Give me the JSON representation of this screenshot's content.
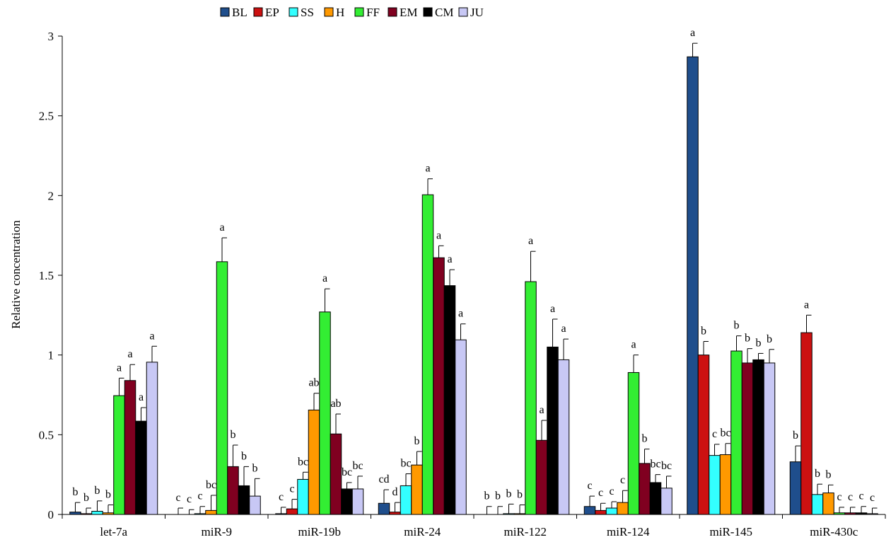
{
  "chart_data": {
    "type": "bar",
    "title": "",
    "xlabel": "",
    "ylabel": "Relative concentration",
    "ylim": [
      0,
      3
    ],
    "yticks": [
      "0",
      "0.5",
      "1",
      "1.5",
      "2",
      "2.5",
      "3"
    ],
    "grid": false,
    "legend_position": "top",
    "categories": [
      "let-7a",
      "miR-9",
      "miR-19b",
      "miR-24",
      "miR-122",
      "miR-124",
      "miR-145",
      "miR-430c"
    ],
    "series": [
      {
        "name": "BL",
        "color": "#1f4e8c",
        "values": [
          0.015,
          0.0,
          0.005,
          0.07,
          0.0,
          0.05,
          2.87,
          0.33
        ],
        "errors": [
          0.06,
          0.04,
          0.04,
          0.085,
          0.05,
          0.065,
          0.085,
          0.1
        ],
        "letters": [
          "b",
          "c",
          "c",
          "cd",
          "b",
          "c",
          "a",
          "b"
        ]
      },
      {
        "name": "EP",
        "color": "#cc1111",
        "values": [
          0.005,
          0.0,
          0.035,
          0.015,
          0.0,
          0.025,
          1.0,
          1.14
        ],
        "errors": [
          0.035,
          0.03,
          0.06,
          0.06,
          0.05,
          0.045,
          0.085,
          0.11
        ],
        "letters": [
          "b",
          "c",
          "c",
          "d",
          "b",
          "c",
          "b",
          "a"
        ]
      },
      {
        "name": "SS",
        "color": "#33ffff",
        "values": [
          0.02,
          0.005,
          0.22,
          0.18,
          0.005,
          0.04,
          0.37,
          0.125
        ],
        "errors": [
          0.065,
          0.045,
          0.045,
          0.075,
          0.06,
          0.04,
          0.07,
          0.065
        ],
        "letters": [
          "b",
          "c",
          "bc",
          "bc",
          "b",
          "c",
          "c",
          "b"
        ]
      },
      {
        "name": "H",
        "color": "#ff9900",
        "values": [
          0.01,
          0.025,
          0.655,
          0.31,
          0.005,
          0.075,
          0.375,
          0.135
        ],
        "errors": [
          0.05,
          0.095,
          0.105,
          0.085,
          0.055,
          0.075,
          0.07,
          0.05
        ],
        "letters": [
          "b",
          "bc",
          "ab",
          "b",
          "b",
          "c",
          "bc",
          "b"
        ]
      },
      {
        "name": "FF",
        "color": "#33ee33",
        "values": [
          0.745,
          1.585,
          1.27,
          2.005,
          1.46,
          0.89,
          1.025,
          0.01
        ],
        "errors": [
          0.11,
          0.15,
          0.145,
          0.1,
          0.19,
          0.11,
          0.095,
          0.035
        ],
        "letters": [
          "a",
          "a",
          "a",
          "a",
          "a",
          "a",
          "b",
          "c"
        ]
      },
      {
        "name": "EM",
        "color": "#800020",
        "values": [
          0.84,
          0.3,
          0.505,
          1.61,
          0.465,
          0.32,
          0.95,
          0.01
        ],
        "errors": [
          0.1,
          0.135,
          0.125,
          0.075,
          0.125,
          0.09,
          0.09,
          0.035
        ],
        "letters": [
          "a",
          "b",
          "ab",
          "a",
          "a",
          "b",
          "b",
          "c"
        ]
      },
      {
        "name": "CM",
        "color": "#000000",
        "values": [
          0.585,
          0.18,
          0.16,
          1.435,
          1.05,
          0.2,
          0.97,
          0.01
        ],
        "errors": [
          0.085,
          0.12,
          0.04,
          0.1,
          0.175,
          0.05,
          0.04,
          0.04
        ],
        "letters": [
          "a",
          "b",
          "bc",
          "a",
          "a",
          "bc",
          "b",
          "c"
        ]
      },
      {
        "name": "JU",
        "color": "#c8c8f5",
        "values": [
          0.955,
          0.115,
          0.16,
          1.095,
          0.97,
          0.165,
          0.95,
          0.005
        ],
        "errors": [
          0.1,
          0.11,
          0.08,
          0.1,
          0.13,
          0.075,
          0.085,
          0.035
        ],
        "letters": [
          "a",
          "b",
          "bc",
          "a",
          "a",
          "bc",
          "b",
          "c"
        ]
      }
    ]
  }
}
